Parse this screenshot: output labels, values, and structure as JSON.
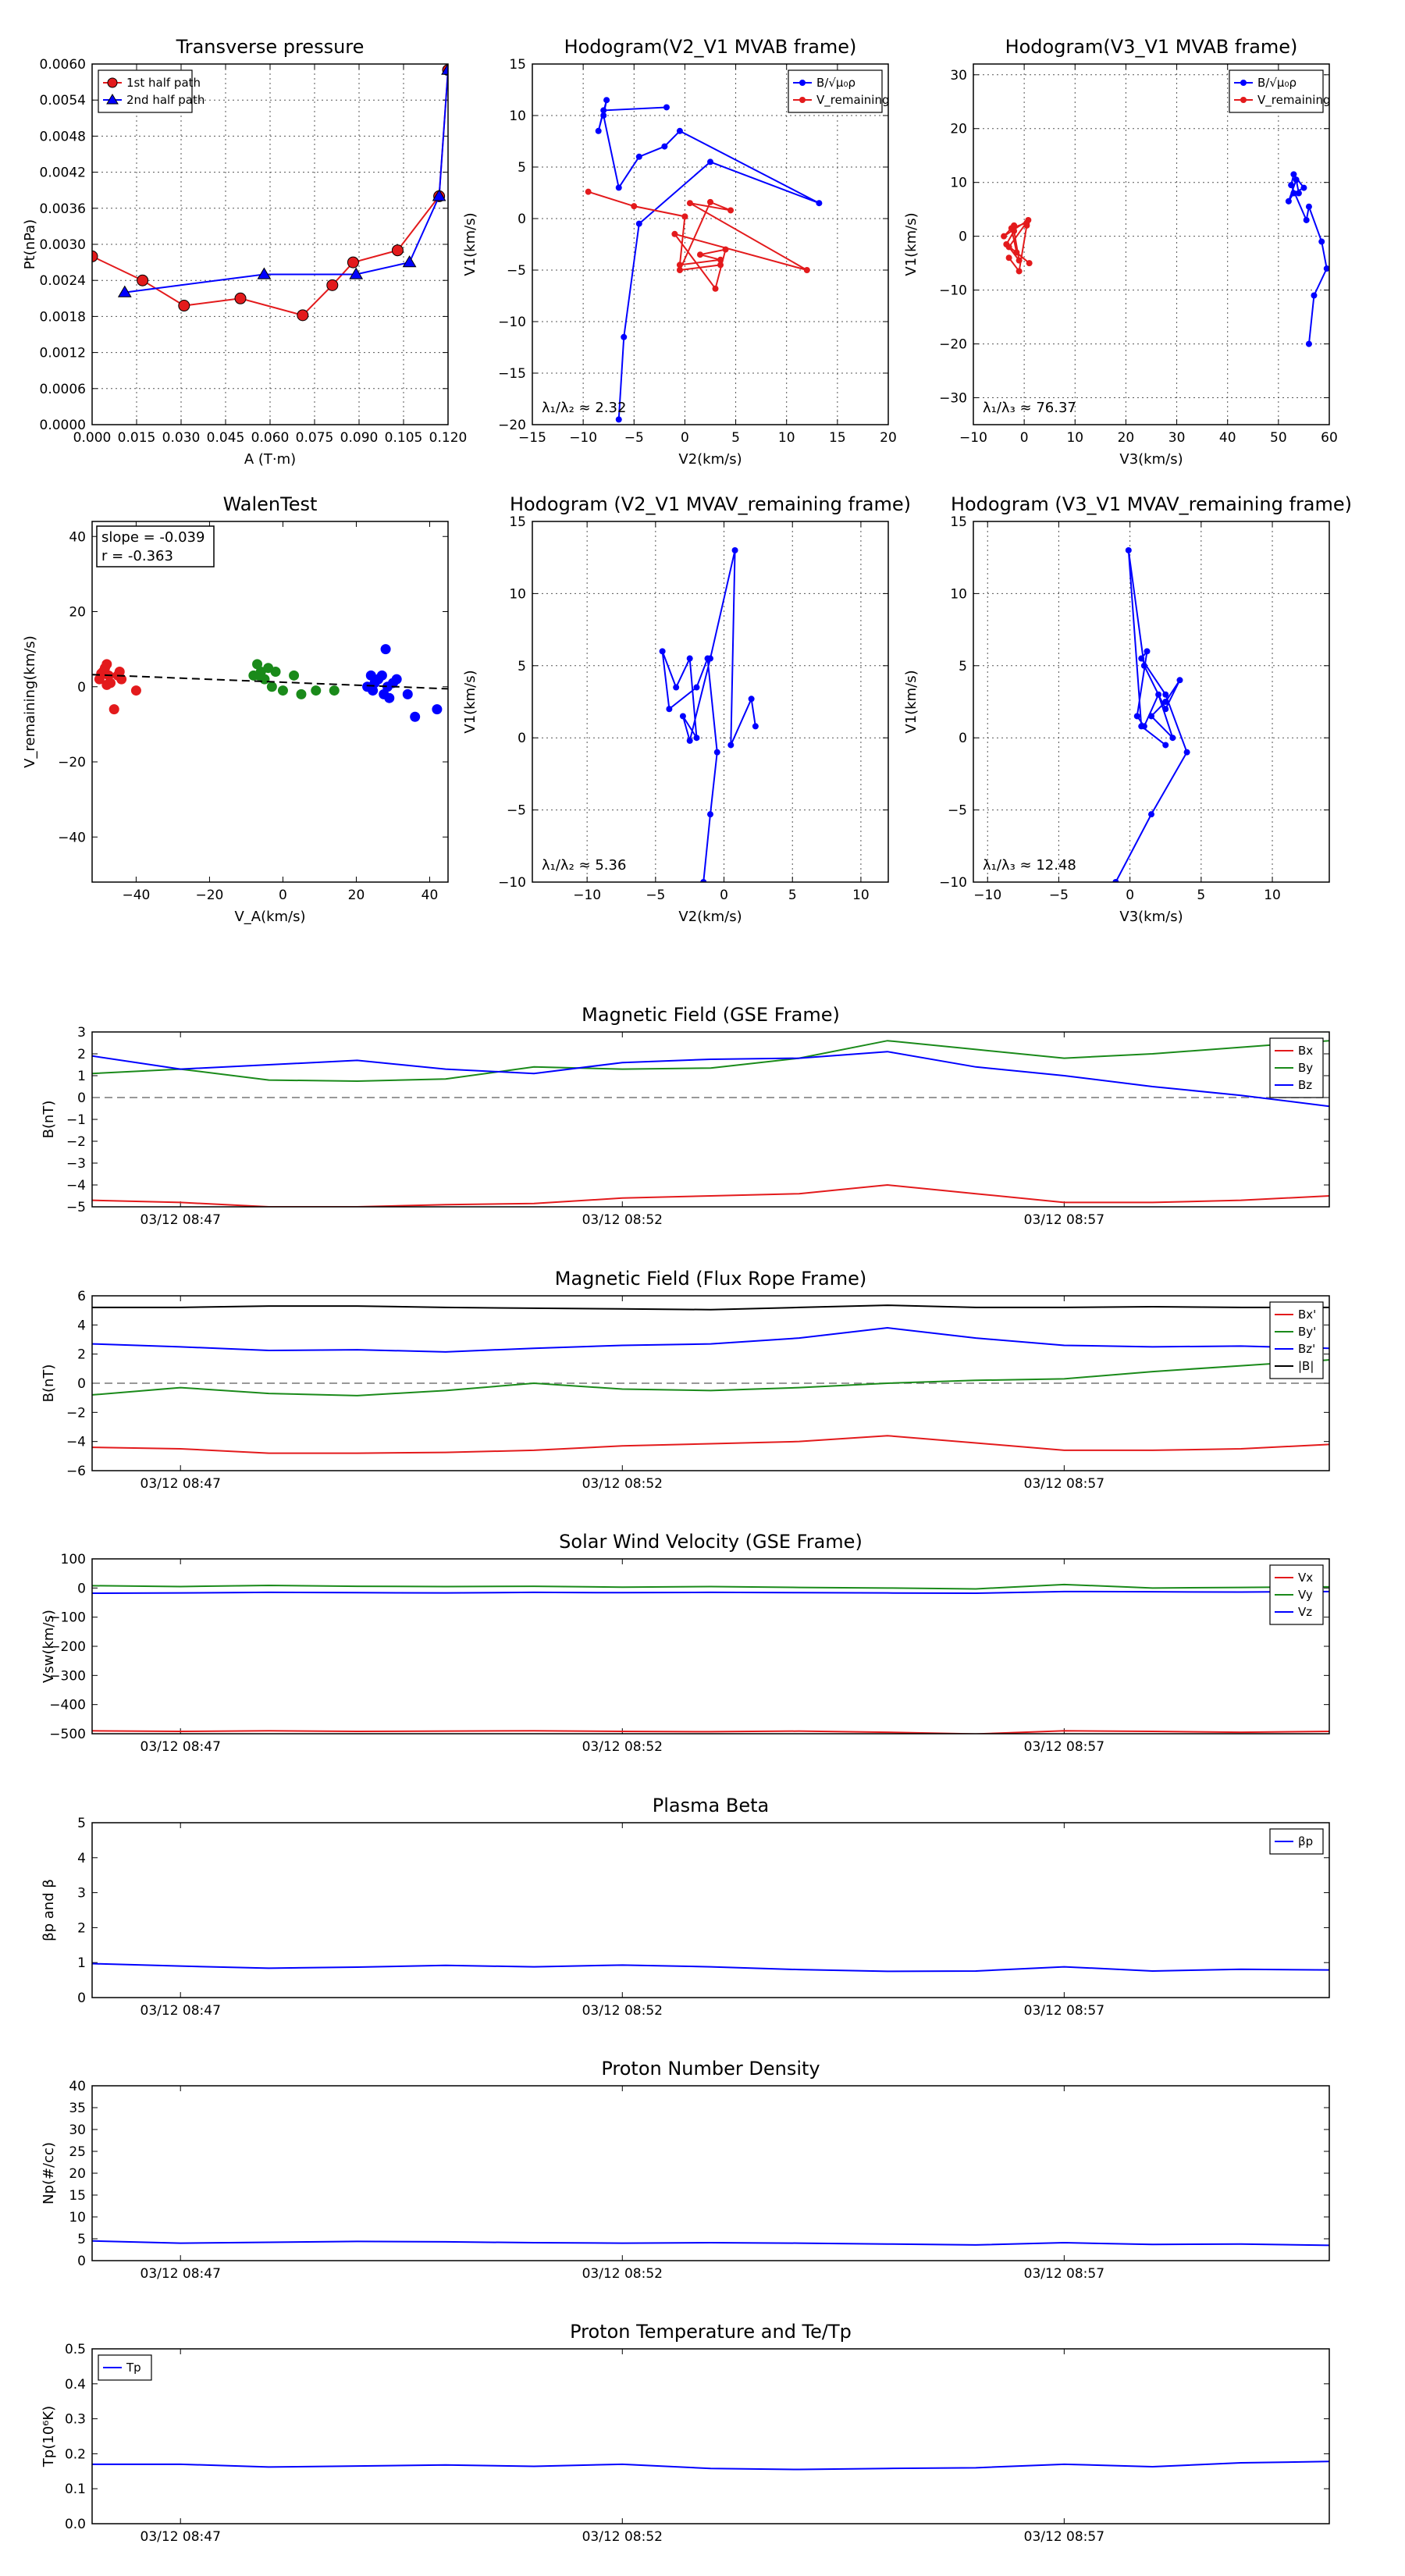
{
  "chart_data": [
    {
      "id": "p1",
      "type": "line",
      "title": "Transverse pressure",
      "xlabel": "A (T·m)",
      "ylabel": "Pt(nPa)",
      "xlim": [
        0,
        0.12
      ],
      "ylim": [
        0,
        0.006
      ],
      "xticks": [
        "0.000",
        "0.015",
        "0.030",
        "0.045",
        "0.060",
        "0.075",
        "0.090",
        "0.105",
        "0.120"
      ],
      "yticks": [
        "0.0000",
        "0.0006",
        "0.0012",
        "0.0018",
        "0.0024",
        "0.0030",
        "0.0036",
        "0.0042",
        "0.0048",
        "0.0054",
        "0.0060"
      ],
      "grid": true,
      "legend": "top-left",
      "series": [
        {
          "name": "1st half path",
          "color": "#e31a1c",
          "marker": "circle",
          "x": [
            0.0,
            0.017,
            0.031,
            0.05,
            0.071,
            0.081,
            0.088,
            0.103,
            0.117,
            0.12
          ],
          "y": [
            0.0028,
            0.0024,
            0.00198,
            0.0021,
            0.00182,
            0.00232,
            0.0027,
            0.0029,
            0.0038,
            0.0059
          ]
        },
        {
          "name": "2nd half path",
          "color": "#0000ff",
          "marker": "triangle",
          "x": [
            0.011,
            0.058,
            0.089,
            0.107,
            0.117,
            0.12
          ],
          "y": [
            0.0022,
            0.0025,
            0.0025,
            0.0027,
            0.0038,
            0.0059
          ]
        }
      ]
    },
    {
      "id": "p2",
      "type": "line",
      "title": "Hodogram(V2_V1 MVAB frame)",
      "xlabel": "V2(km/s)",
      "ylabel": "V1(km/s)",
      "xlim": [
        -15,
        20
      ],
      "ylim": [
        -20,
        15
      ],
      "xticks": [
        "−15",
        "−10",
        "−5",
        "0",
        "5",
        "10",
        "15",
        "20"
      ],
      "yticks": [
        "−20",
        "−15",
        "−10",
        "−5",
        "0",
        "5",
        "10",
        "15"
      ],
      "grid": true,
      "legend": "top-right",
      "annotation": "λ₁/λ₂ ≈ 2.32",
      "series": [
        {
          "name": "B/√μ₀ρ",
          "color": "#0000ff",
          "x": [
            -6.5,
            -6.0,
            -4.5,
            2.5,
            13.2,
            -0.5,
            -2.0,
            -4.5,
            -6.5,
            -8.0,
            -7.7,
            -8.5,
            -8.0,
            -1.8
          ],
          "y": [
            -19.5,
            -11.5,
            -0.5,
            5.5,
            1.5,
            8.5,
            7.0,
            6.0,
            3.0,
            10.0,
            11.5,
            8.5,
            10.5,
            10.8
          ]
        },
        {
          "name": "V_remaining",
          "color": "#e31a1c",
          "x": [
            -9.5,
            -5.0,
            0.0,
            -0.5,
            3.5,
            1.5,
            4.0,
            3.0,
            -1.0,
            12.0,
            0.5,
            4.5,
            2.5,
            -0.5,
            3.5
          ],
          "y": [
            2.6,
            1.2,
            0.2,
            -4.5,
            -4.0,
            -3.5,
            -3.0,
            -6.8,
            -1.5,
            -5.0,
            1.5,
            0.8,
            1.6,
            -5.0,
            -4.5
          ]
        }
      ]
    },
    {
      "id": "p3",
      "type": "line",
      "title": "Hodogram(V3_V1 MVAB frame)",
      "xlabel": "V3(km/s)",
      "ylabel": "V1(km/s)",
      "xlim": [
        -10,
        60
      ],
      "ylim": [
        -35,
        32
      ],
      "xticks": [
        "−10",
        "0",
        "10",
        "20",
        "30",
        "40",
        "50",
        "60"
      ],
      "yticks": [
        "−30",
        "−20",
        "−10",
        "0",
        "10",
        "20",
        "30"
      ],
      "grid": true,
      "legend": "top-right",
      "annotation": "λ₁/λ₃ ≈ 76.37",
      "series": [
        {
          "name": "B/√μ₀ρ",
          "color": "#0000ff",
          "x": [
            56,
            57,
            59.5,
            58.5,
            56,
            55.5,
            52.5,
            53,
            55,
            53,
            52,
            53.5,
            54
          ],
          "y": [
            -20,
            -11,
            -6,
            -1,
            5.5,
            3,
            9.5,
            11.5,
            9,
            8,
            6.5,
            10.5,
            8
          ]
        },
        {
          "name": "V_remaining",
          "color": "#e31a1c",
          "x": [
            -3,
            -1,
            0.5,
            0.5,
            -2.5,
            -1.5,
            1,
            -3.5,
            -2,
            -1,
            -3,
            0.8,
            -4,
            -2
          ],
          "y": [
            -4,
            -6.5,
            2,
            2.5,
            1.5,
            -3,
            -5,
            -1.5,
            1,
            -4.5,
            -2,
            3,
            0,
            2
          ]
        }
      ]
    },
    {
      "id": "p4",
      "type": "scatter",
      "title": "WalenTest",
      "xlabel": "V_A(km/s)",
      "ylabel": "V_remaining(km/s)",
      "xlim": [
        -52,
        45
      ],
      "ylim": [
        -52,
        44
      ],
      "xticks": [
        "−40",
        "−20",
        "0",
        "20",
        "40"
      ],
      "yticks": [
        "−40",
        "−20",
        "0",
        "20",
        "40"
      ],
      "grid": false,
      "annotation_lines": [
        "slope = -0.039",
        "r = -0.363"
      ],
      "fit": {
        "slope": -0.039,
        "intercept": 1.2
      },
      "series": [
        {
          "color": "#e31a1c",
          "x": [
            -50,
            -49,
            -48.5,
            -48,
            -47.5,
            -47,
            -46,
            -45,
            -44.5,
            -44,
            -40,
            -49.5,
            -48
          ],
          "y": [
            2,
            4,
            5,
            6,
            3,
            1,
            -6,
            3,
            4,
            2,
            -1,
            3.5,
            0.5
          ]
        },
        {
          "color": "#1a8a1a",
          "x": [
            -8,
            -7,
            -6,
            -5,
            -4,
            -3,
            -2,
            0,
            3,
            5,
            9,
            14,
            -6.5
          ],
          "y": [
            3,
            6,
            4,
            2,
            5,
            0,
            4,
            -1,
            3,
            -2,
            -1,
            -1,
            3
          ]
        },
        {
          "color": "#0000ff",
          "x": [
            23,
            24,
            25,
            26,
            27,
            27.5,
            28,
            28.5,
            29,
            30,
            31,
            34,
            36,
            42,
            24.5
          ],
          "y": [
            0,
            3,
            1,
            2,
            3,
            -2,
            10,
            0,
            -3,
            1,
            2,
            -2,
            -8,
            -6,
            -1
          ]
        }
      ]
    },
    {
      "id": "p5",
      "type": "line",
      "title": "Hodogram (V2_V1 MVAV_remaining frame)",
      "xlabel": "V2(km/s)",
      "ylabel": "V1(km/s)",
      "xlim": [
        -14,
        12
      ],
      "ylim": [
        -10,
        15
      ],
      "xticks": [
        "−10",
        "−5",
        "0",
        "5",
        "10"
      ],
      "yticks": [
        "−10",
        "−5",
        "0",
        "5",
        "10",
        "15"
      ],
      "grid": true,
      "annotation": "λ₁/λ₂ ≈ 5.36",
      "series": [
        {
          "color": "#0000ff",
          "x": [
            -1.5,
            -1.0,
            -0.5,
            -1.2,
            -2.0,
            -4.0,
            -4.5,
            -3.5,
            -2.5,
            -2.0,
            -3.0,
            -2.5,
            -1.0,
            0.8,
            0.5,
            2.0,
            2.3
          ],
          "y": [
            -10.0,
            -5.3,
            -1.0,
            5.5,
            3.5,
            2.0,
            6.0,
            3.5,
            5.5,
            0,
            1.5,
            -0.2,
            5.5,
            13.0,
            -0.5,
            2.7,
            0.8
          ]
        }
      ]
    },
    {
      "id": "p6",
      "type": "line",
      "title": "Hodogram (V3_V1 MVAV_remaining frame)",
      "xlabel": "V3(km/s)",
      "ylabel": "V1(km/s)",
      "xlim": [
        -11,
        14
      ],
      "ylim": [
        -10,
        15
      ],
      "xticks": [
        "−10",
        "−5",
        "0",
        "5",
        "10"
      ],
      "yticks": [
        "−10",
        "−5",
        "0",
        "5",
        "10",
        "15"
      ],
      "grid": true,
      "annotation": "λ₁/λ₃ ≈ 12.48",
      "series": [
        {
          "color": "#0000ff",
          "x": [
            -1.0,
            1.5,
            4.0,
            2.5,
            0.8,
            1.2,
            0.5,
            1.0,
            2.0,
            3.0,
            1.5,
            2.5,
            3.5,
            2.5,
            1.0,
            -0.1,
            0.8,
            2.5
          ],
          "y": [
            -10,
            -5.3,
            -1.0,
            3.0,
            5.5,
            6.0,
            1.5,
            0.8,
            3.0,
            0,
            1.5,
            2.5,
            4.0,
            2.0,
            5.0,
            13.0,
            0.8,
            -0.5
          ]
        }
      ]
    },
    {
      "id": "p7",
      "type": "line",
      "title": "Magnetic Field (GSE Frame)",
      "ylabel": "B(nT)",
      "ylim": [
        -5,
        3
      ],
      "yticks": [
        "3",
        "2",
        "1",
        "0",
        "−1",
        "−2",
        "−3",
        "−4",
        "−5"
      ],
      "xtick_labels": [
        "03/12 08:47",
        "03/12 08:52",
        "03/12 08:57"
      ],
      "zero_line": true,
      "legend": "top-right",
      "series": [
        {
          "name": "Bx",
          "color": "#e31a1c",
          "values": [
            -4.7,
            -4.8,
            -5.0,
            -5.0,
            -4.9,
            -4.85,
            -4.6,
            -4.5,
            -4.4,
            -4.0,
            -4.4,
            -4.8,
            -4.8,
            -4.7,
            -4.5
          ]
        },
        {
          "name": "By",
          "color": "#1a8a1a",
          "values": [
            1.1,
            1.3,
            0.8,
            0.75,
            0.85,
            1.4,
            1.3,
            1.35,
            1.8,
            2.6,
            2.2,
            1.8,
            2.0,
            2.3,
            2.6
          ]
        },
        {
          "name": "Bz",
          "color": "#0000ff",
          "values": [
            1.9,
            1.3,
            1.5,
            1.7,
            1.3,
            1.1,
            1.6,
            1.75,
            1.8,
            2.1,
            1.4,
            1.0,
            0.5,
            0.1,
            -0.4
          ]
        }
      ]
    },
    {
      "id": "p8",
      "type": "line",
      "title": "Magnetic Field (Flux Rope Frame)",
      "ylabel": "B(nT)",
      "ylim": [
        -6,
        6
      ],
      "yticks": [
        "6",
        "4",
        "2",
        "0",
        "−2",
        "−4",
        "−6"
      ],
      "xtick_labels": [
        "03/12 08:47",
        "03/12 08:52",
        "03/12 08:57"
      ],
      "zero_line": true,
      "legend": "top-right",
      "series": [
        {
          "name": "Bx'",
          "color": "#e31a1c",
          "values": [
            -4.4,
            -4.5,
            -4.8,
            -4.8,
            -4.75,
            -4.6,
            -4.3,
            -4.15,
            -4.0,
            -3.6,
            -4.1,
            -4.6,
            -4.6,
            -4.5,
            -4.2
          ]
        },
        {
          "name": "By'",
          "color": "#1a8a1a",
          "values": [
            -0.8,
            -0.3,
            -0.7,
            -0.85,
            -0.5,
            0,
            -0.4,
            -0.5,
            -0.3,
            0,
            0.2,
            0.3,
            0.8,
            1.2,
            1.6
          ]
        },
        {
          "name": "Bz'",
          "color": "#0000ff",
          "values": [
            2.7,
            2.5,
            2.25,
            2.3,
            2.15,
            2.4,
            2.6,
            2.7,
            3.1,
            3.8,
            3.1,
            2.6,
            2.5,
            2.55,
            2.4
          ]
        },
        {
          "name": "|B|",
          "color": "#000000",
          "values": [
            5.2,
            5.2,
            5.3,
            5.3,
            5.2,
            5.15,
            5.1,
            5.05,
            5.2,
            5.35,
            5.2,
            5.2,
            5.25,
            5.2,
            5.2
          ]
        }
      ]
    },
    {
      "id": "p9",
      "type": "line",
      "title": "Solar Wind Velocity (GSE Frame)",
      "ylabel": "Vsw(km/s)",
      "ylim": [
        -500,
        100
      ],
      "yticks": [
        "100",
        "0",
        "−100",
        "−200",
        "−300",
        "−400",
        "−500"
      ],
      "xtick_labels": [
        "03/12 08:47",
        "03/12 08:52",
        "03/12 08:57"
      ],
      "legend": "top-right",
      "series": [
        {
          "name": "Vx",
          "color": "#e31a1c",
          "values": [
            -490,
            -492,
            -490,
            -492,
            -491,
            -490,
            -492,
            -493,
            -491,
            -495,
            -501,
            -490,
            -492,
            -495,
            -492
          ]
        },
        {
          "name": "Vy",
          "color": "#1a8a1a",
          "values": [
            8,
            5,
            9,
            6,
            5,
            6,
            3,
            5,
            2,
            0,
            -3,
            12,
            0,
            2,
            4
          ]
        },
        {
          "name": "Vz",
          "color": "#0000ff",
          "values": [
            -18,
            -17,
            -15,
            -16,
            -17,
            -15,
            -16,
            -15,
            -16,
            -17,
            -18,
            -12,
            -13,
            -14,
            -12
          ]
        }
      ]
    },
    {
      "id": "p10",
      "type": "line",
      "title": "Plasma Beta",
      "ylabel": "βp and β",
      "ylim": [
        0,
        5
      ],
      "yticks": [
        "5",
        "4",
        "3",
        "2",
        "1",
        "0"
      ],
      "xtick_labels": [
        "03/12 08:47",
        "03/12 08:52",
        "03/12 08:57"
      ],
      "legend": "top-right",
      "series": [
        {
          "name": "βp",
          "color": "#0000ff",
          "values": [
            0.97,
            0.9,
            0.84,
            0.87,
            0.92,
            0.88,
            0.93,
            0.88,
            0.8,
            0.75,
            0.76,
            0.88,
            0.76,
            0.81,
            0.79
          ]
        }
      ]
    },
    {
      "id": "p11",
      "type": "line",
      "title": "Proton Number Density",
      "ylabel": "Np(#/cc)",
      "ylim": [
        0,
        40
      ],
      "yticks": [
        "40",
        "35",
        "30",
        "25",
        "20",
        "15",
        "10",
        "5",
        "0"
      ],
      "xtick_labels": [
        "03/12 08:47",
        "03/12 08:52",
        "03/12 08:57"
      ],
      "series": [
        {
          "name": "Np",
          "color": "#0000ff",
          "values": [
            4.5,
            4.0,
            4.2,
            4.4,
            4.3,
            4.1,
            4.0,
            4.1,
            4.0,
            3.8,
            3.6,
            4.1,
            3.7,
            3.8,
            3.5
          ]
        }
      ]
    },
    {
      "id": "p12",
      "type": "line",
      "title": "Proton Temperature and Te/Tp",
      "ylabel": "Tp(10⁶K)",
      "ylim": [
        0,
        0.5
      ],
      "yticks": [
        "0.5",
        "0.4",
        "0.3",
        "0.2",
        "0.1",
        "0.0"
      ],
      "xtick_labels": [
        "03/12 08:47",
        "03/12 08:52",
        "03/12 08:57"
      ],
      "legend": "top-left",
      "series": [
        {
          "name": "Tp",
          "color": "#0000ff",
          "values": [
            0.17,
            0.17,
            0.162,
            0.165,
            0.168,
            0.164,
            0.17,
            0.158,
            0.155,
            0.158,
            0.16,
            0.17,
            0.163,
            0.174,
            0.178
          ]
        }
      ]
    }
  ]
}
